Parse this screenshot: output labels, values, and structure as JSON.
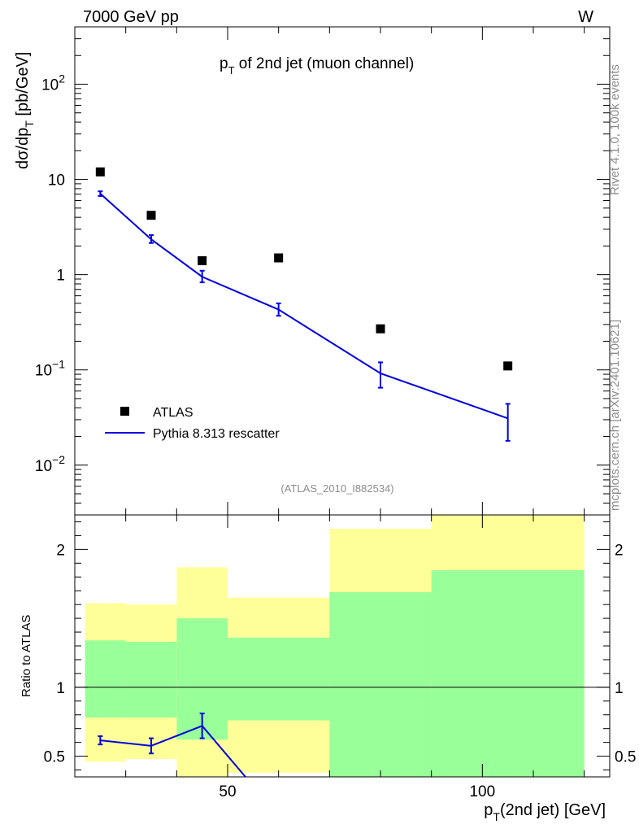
{
  "header": {
    "left": "7000 GeV pp",
    "right": "W"
  },
  "side_labels": {
    "rivet": "Rivet 4.1.0,  100k events",
    "mcplots": "mcplots.cern.ch [arXiv:2401.10621]"
  },
  "chart_data": {
    "type": "scatter",
    "title": "p_T of 2nd jet (muon channel)",
    "title_main": "p",
    "title_sub": "T",
    "title_rest": " of 2nd jet (muon channel)",
    "analysis_tag": "(ATLAS_2010_I882534)",
    "ylabel": "dσ/dp_T [pb/GeV]",
    "ylabel_main": "dσ/dp",
    "ylabel_sub": "T",
    "ylabel_rest": " [pb/GeV]",
    "xlabel": "p_T(2nd jet) [GeV]",
    "xlabel_main": "p",
    "xlabel_sub": "T",
    "xlabel_rest": "(2nd jet) [GeV]",
    "ratio_ylabel": "Ratio to ATLAS",
    "xlim": [
      20,
      125
    ],
    "ylim_log": [
      0.003,
      400
    ],
    "ratio_ylim": [
      0.35,
      2.25
    ],
    "x_ticks": [
      {
        "value": 50,
        "label": "50"
      },
      {
        "value": 100,
        "label": "100"
      }
    ],
    "y_ticks_main": [
      {
        "value": 0.01,
        "base": "10",
        "exp": "−2"
      },
      {
        "value": 0.1,
        "base": "10",
        "exp": "−1"
      },
      {
        "value": 1,
        "base": "1",
        "exp": ""
      },
      {
        "value": 10,
        "base": "10",
        "exp": ""
      },
      {
        "value": 100,
        "base": "10",
        "exp": "2"
      }
    ],
    "y_ticks_ratio": [
      {
        "value": 0.5,
        "label": "0.5"
      },
      {
        "value": 1,
        "label": "1"
      },
      {
        "value": 2,
        "label": "2"
      }
    ],
    "legend": {
      "position": "bottom-left",
      "entries": [
        {
          "label": "ATLAS",
          "marker": "square",
          "color": "#000000"
        },
        {
          "label": "Pythia 8.313 rescatter",
          "marker": "line",
          "color": "#0000e0"
        }
      ]
    },
    "series": [
      {
        "name": "ATLAS",
        "color": "#000000",
        "points": [
          {
            "x": 25,
            "y": 12.0
          },
          {
            "x": 35,
            "y": 4.2
          },
          {
            "x": 45,
            "y": 1.4
          },
          {
            "x": 60,
            "y": 1.5
          },
          {
            "x": 80,
            "y": 0.27
          },
          {
            "x": 105,
            "y": 0.11
          }
        ]
      },
      {
        "name": "Pythia 8.313 rescatter",
        "color": "#0000e0",
        "points": [
          {
            "x": 25,
            "y": 7.1,
            "lo": 6.7,
            "hi": 7.5
          },
          {
            "x": 35,
            "y": 2.35,
            "lo": 2.15,
            "hi": 2.6
          },
          {
            "x": 45,
            "y": 0.95,
            "lo": 0.83,
            "hi": 1.1
          },
          {
            "x": 60,
            "y": 0.43,
            "lo": 0.37,
            "hi": 0.5
          },
          {
            "x": 80,
            "y": 0.092,
            "lo": 0.065,
            "hi": 0.12
          },
          {
            "x": 105,
            "y": 0.031,
            "lo": 0.018,
            "hi": 0.044
          }
        ]
      }
    ],
    "ratio_series": {
      "name": "Pythia 8.313 rescatter",
      "color": "#0000e0",
      "points": [
        {
          "x": 25,
          "y": 0.615,
          "lo": 0.585,
          "hi": 0.645
        },
        {
          "x": 35,
          "y": 0.575,
          "lo": 0.52,
          "hi": 0.63
        },
        {
          "x": 45,
          "y": 0.72,
          "lo": 0.63,
          "hi": 0.81
        },
        {
          "x": 53.5,
          "y": 0.35
        }
      ]
    },
    "ratio_bands": [
      {
        "xlo": 22,
        "xhi": 30,
        "green_lo": 0.78,
        "green_hi": 1.34,
        "yellow_lo": 0.46,
        "yellow_hi": 1.61
      },
      {
        "xlo": 30,
        "xhi": 40,
        "green_lo": 0.78,
        "green_hi": 1.33,
        "yellow_lo": 0.48,
        "yellow_hi": 1.6
      },
      {
        "xlo": 40,
        "xhi": 50,
        "green_lo": 0.62,
        "green_hi": 1.5,
        "yellow_lo": 0.35,
        "yellow_hi": 1.87
      },
      {
        "xlo": 50,
        "xhi": 70,
        "green_lo": 0.76,
        "green_hi": 1.36,
        "yellow_lo": 0.38,
        "yellow_hi": 1.65
      },
      {
        "xlo": 70,
        "xhi": 90,
        "green_lo": 0.35,
        "green_hi": 1.69,
        "yellow_lo": 0.35,
        "yellow_hi": 2.15
      },
      {
        "xlo": 90,
        "xhi": 120,
        "green_lo": 0.35,
        "green_hi": 1.85,
        "yellow_lo": 0.35,
        "yellow_hi": 2.25
      }
    ],
    "colors": {
      "green_band": "#99ff99",
      "yellow_band": "#ffff99",
      "mc_line": "#0000e0"
    }
  }
}
